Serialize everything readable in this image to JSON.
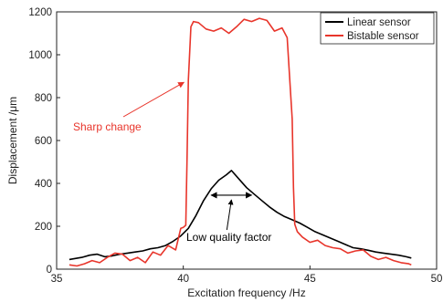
{
  "chart_data": {
    "type": "line",
    "xlabel": "Excitation frequency /Hz",
    "ylabel": "Displacement /μm",
    "xlim": [
      35,
      50
    ],
    "ylim": [
      0,
      1200
    ],
    "xticks": [
      35,
      40,
      45,
      50
    ],
    "yticks": [
      0,
      200,
      400,
      600,
      800,
      1000,
      1200
    ],
    "grid": false,
    "legend_position": "top-right",
    "series": [
      {
        "name": "Linear sensor",
        "color": "#000000",
        "x": [
          35.5,
          36.0,
          36.3,
          36.6,
          36.9,
          37.2,
          37.5,
          37.8,
          38.1,
          38.4,
          38.7,
          39.0,
          39.3,
          39.6,
          39.9,
          40.2,
          40.5,
          40.8,
          41.1,
          41.4,
          41.7,
          41.9,
          42.2,
          42.5,
          42.8,
          43.1,
          43.4,
          43.7,
          44.0,
          44.3,
          44.6,
          44.9,
          45.2,
          45.5,
          45.8,
          46.1,
          46.4,
          46.7,
          47.0,
          47.3,
          47.6,
          47.9,
          48.2,
          48.5,
          48.8,
          49.0
        ],
        "y": [
          45,
          55,
          65,
          70,
          58,
          62,
          70,
          75,
          80,
          85,
          95,
          100,
          110,
          130,
          155,
          190,
          250,
          320,
          375,
          415,
          440,
          460,
          420,
          380,
          350,
          320,
          290,
          265,
          245,
          230,
          215,
          195,
          175,
          160,
          145,
          130,
          115,
          100,
          95,
          88,
          80,
          75,
          70,
          65,
          58,
          52
        ]
      },
      {
        "name": "Bistable sensor",
        "color": "#e8352b",
        "x": [
          35.5,
          35.8,
          36.1,
          36.4,
          36.7,
          37.0,
          37.3,
          37.6,
          37.9,
          38.2,
          38.5,
          38.8,
          39.1,
          39.4,
          39.7,
          39.9,
          40.0,
          40.05,
          40.1,
          40.15,
          40.2,
          40.3,
          40.4,
          40.6,
          40.9,
          41.2,
          41.5,
          41.8,
          42.1,
          42.4,
          42.7,
          43.0,
          43.3,
          43.6,
          43.9,
          44.1,
          44.3,
          44.35,
          44.4,
          44.5,
          44.7,
          45.0,
          45.3,
          45.6,
          45.9,
          46.2,
          46.5,
          46.8,
          47.1,
          47.4,
          47.7,
          48.0,
          48.3,
          48.6,
          48.9,
          49.0
        ],
        "y": [
          20,
          15,
          25,
          40,
          30,
          55,
          75,
          70,
          40,
          55,
          30,
          80,
          65,
          110,
          90,
          190,
          195,
          200,
          205,
          520,
          880,
          1130,
          1155,
          1150,
          1120,
          1110,
          1125,
          1100,
          1130,
          1165,
          1155,
          1170,
          1160,
          1110,
          1125,
          1080,
          700,
          380,
          210,
          175,
          150,
          125,
          135,
          110,
          100,
          95,
          75,
          85,
          90,
          60,
          45,
          55,
          40,
          30,
          25,
          20
        ]
      }
    ],
    "annotations": [
      {
        "text": "Sharp change",
        "color": "#e8352b",
        "arrow_to": [
          40.1,
          880
        ]
      },
      {
        "text": "Low quality factor",
        "color": "#000000",
        "span": [
          41.1,
          42.7
        ],
        "at_y": 345
      }
    ]
  }
}
